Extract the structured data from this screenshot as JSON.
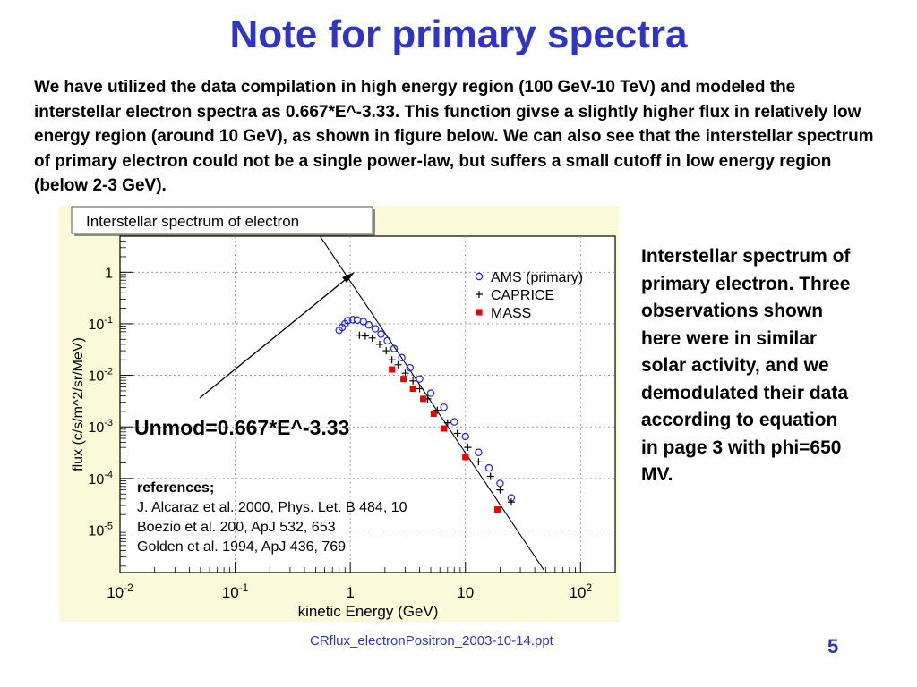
{
  "slide": {
    "title": "Note for primary spectra",
    "intro": "We have utilized the data compilation in high energy region (100 GeV-10 TeV) and modeled the interstellar electron spectra as 0.667*E^-3.33. This function givse a slightly higher flux in relatively low energy region (around 10 GeV), as shown in figure below. We can also see that the interstellar spectrum of primary electron could not be a single power-law, but suffers a small cutoff in low energy region (below 2-3 GeV).",
    "side_note": "Interstellar spectrum of primary electron. Three observations shown here were in similar solar activity, and we demodulated their data according to equation in page 3 with phi=650 MV.",
    "footer": "CRflux_electronPositron_2003-10-14.ppt",
    "page_number": "5"
  },
  "chart_data": {
    "type": "scatter",
    "title": "Interstellar spectrum of electron",
    "xlabel": "kinetic Energy (GeV)",
    "ylabel": "flux (c/s/m^2/sr/MeV)",
    "x_scale": "log",
    "y_scale": "log",
    "xlim": [
      0.01,
      200
    ],
    "ylim": [
      1.5e-06,
      5
    ],
    "x_ticks": [
      {
        "v": 0.01,
        "base": "10",
        "exp": "-2"
      },
      {
        "v": 0.1,
        "base": "10",
        "exp": "-1"
      },
      {
        "v": 1,
        "base": "1",
        "exp": ""
      },
      {
        "v": 10,
        "base": "10",
        "exp": ""
      },
      {
        "v": 100,
        "base": "10",
        "exp": "2"
      }
    ],
    "y_ticks": [
      {
        "v": 1,
        "base": "1",
        "exp": ""
      },
      {
        "v": 0.1,
        "base": "10",
        "exp": "-1"
      },
      {
        "v": 0.01,
        "base": "10",
        "exp": "-2"
      },
      {
        "v": 0.001,
        "base": "10",
        "exp": "-3"
      },
      {
        "v": 0.0001,
        "base": "10",
        "exp": "-4"
      },
      {
        "v": 1e-05,
        "base": "10",
        "exp": "-5"
      }
    ],
    "grid": true,
    "legend_position": "top-right",
    "series": [
      {
        "name": "AMS (primary)",
        "marker": "open-circle",
        "color": "#2222dd",
        "x": [
          0.8,
          0.85,
          0.9,
          0.95,
          1.05,
          1.15,
          1.3,
          1.45,
          1.65,
          1.85,
          2.1,
          2.4,
          2.8,
          3.3,
          4,
          5,
          6.5,
          8,
          10,
          13,
          16,
          20,
          25
        ],
        "y": [
          0.075,
          0.085,
          0.1,
          0.115,
          0.12,
          0.118,
          0.11,
          0.095,
          0.08,
          0.063,
          0.047,
          0.033,
          0.022,
          0.014,
          0.0085,
          0.0045,
          0.0024,
          0.00125,
          0.00065,
          0.00032,
          0.00016,
          8e-05,
          4.2e-05
        ]
      },
      {
        "name": "CAPRICE",
        "marker": "plus",
        "color": "#000000",
        "x": [
          1.2,
          1.35,
          1.55,
          1.8,
          2.05,
          2.3,
          2.6,
          3,
          3.5,
          4,
          4.7,
          5.7,
          7,
          8.5,
          10.5,
          13,
          16.5,
          20,
          25
        ],
        "y": [
          0.06,
          0.058,
          0.053,
          0.04,
          0.03,
          0.02,
          0.016,
          0.011,
          0.0078,
          0.0055,
          0.0035,
          0.0021,
          0.0012,
          0.00075,
          0.0004,
          0.00021,
          0.00011,
          6e-05,
          3.5e-05
        ]
      },
      {
        "name": "MASS",
        "marker": "filled-square",
        "color": "#ee0000",
        "x": [
          2.3,
          2.9,
          3.5,
          4.3,
          5.3,
          6.5,
          10,
          19
        ],
        "y": [
          0.013,
          0.0085,
          0.0055,
          0.0035,
          0.0018,
          0.00093,
          0.00026,
          2.5e-05
        ]
      }
    ],
    "model_line": {
      "label": "Unmod=0.667*E^-3.33",
      "coefficient": 0.667,
      "index": -3.33,
      "x_range": [
        0.01,
        100
      ]
    },
    "references": [
      "references;",
      "J. Alcaraz et al. 2000, Phys. Let. B 484, 10",
      "Boezio et al. 200, ApJ 532, 653",
      "Golden et al. 1994, ApJ 436, 769"
    ]
  }
}
